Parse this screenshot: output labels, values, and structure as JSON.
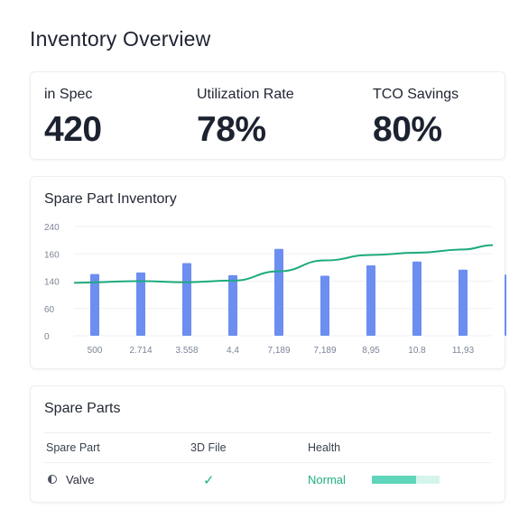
{
  "page": {
    "title": "Inventory Overview"
  },
  "kpis": [
    {
      "label": "in Spec",
      "value": "420"
    },
    {
      "label": "Utilization Rate",
      "value": "78%"
    },
    {
      "label": "TCO Savings",
      "value": "80%"
    }
  ],
  "chart": {
    "title": "Spare Part Inventory"
  },
  "chart_data": {
    "type": "bar",
    "title": "Spare Part Inventory",
    "categories": [
      "500",
      "2.714",
      "3.558",
      "4,4",
      "7,189",
      "7,189",
      "8,95",
      "10.8",
      "11,93",
      ""
    ],
    "y_tick_labels": [
      "0",
      "60",
      "140",
      "160",
      "240"
    ],
    "series": [
      {
        "type": "bar",
        "values": [
          113,
          116,
          133,
          111,
          159,
          110,
          129,
          136,
          121,
          112
        ]
      },
      {
        "type": "line",
        "values": [
          97,
          100,
          98,
          101,
          118,
          138,
          148,
          152,
          158,
          166
        ]
      }
    ],
    "colors": {
      "bar": "#6b8ef0",
      "line": "#1eaa7e",
      "grid": "#eef0f4",
      "tick": "#7b8496"
    },
    "grid": true
  },
  "table": {
    "title": "Spare Parts",
    "headers": [
      "Spare Part",
      "3D File",
      "Health"
    ],
    "rows": [
      {
        "part": "Valve",
        "file_icon": "check-icon",
        "health": "Normal",
        "health_level": 0.65
      }
    ],
    "colors": {
      "ok": "#1fae84",
      "track": "#d4f4ec",
      "fill": "#5fd6bb"
    }
  }
}
